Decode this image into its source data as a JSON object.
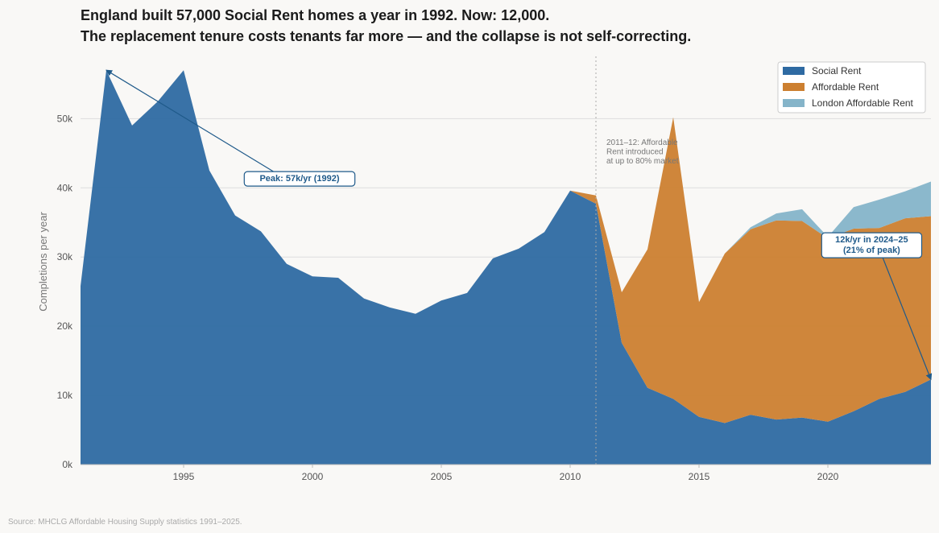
{
  "title_line1": "England built 57,000 Social Rent homes a year in 1992. Now: 12,000.",
  "title_line2": "The replacement tenure costs tenants far more — and the collapse is not self-correcting.",
  "source": "Source: MHCLG Affordable Housing Supply statistics 1991–2025.",
  "chart_data": {
    "type": "area",
    "stacked": true,
    "ylabel": "Completions per year",
    "xlim": [
      1991,
      2024
    ],
    "ylim": [
      0,
      59000
    ],
    "x_ticks": [
      1995,
      2000,
      2005,
      2010,
      2015,
      2020
    ],
    "y_ticks": [
      0,
      10000,
      20000,
      30000,
      40000,
      50000
    ],
    "y_tick_labels": [
      "0k",
      "10k",
      "20k",
      "30k",
      "40k",
      "50k"
    ],
    "grid": "horizontal",
    "legend_position": "top-right",
    "x": [
      1991,
      1992,
      1993,
      1994,
      1995,
      1996,
      1997,
      1998,
      1999,
      2000,
      2001,
      2002,
      2003,
      2004,
      2005,
      2006,
      2007,
      2008,
      2009,
      2010,
      2011,
      2012,
      2013,
      2014,
      2015,
      2016,
      2017,
      2018,
      2019,
      2020,
      2021,
      2022,
      2023,
      2024
    ],
    "series": [
      {
        "name": "Social Rent",
        "color": "#2e6aa2",
        "values": [
          25800,
          57000,
          49000,
          52500,
          57000,
          42500,
          36000,
          33700,
          29000,
          27200,
          27000,
          24000,
          22700,
          21800,
          23700,
          24800,
          29800,
          31200,
          33600,
          39600,
          37700,
          17600,
          11100,
          9500,
          6900,
          6000,
          7200,
          6500,
          6800,
          6200,
          7700,
          9500,
          10500,
          12300
        ]
      },
      {
        "name": "Affordable Rent",
        "color": "#cc7f30",
        "values": [
          0,
          0,
          0,
          0,
          0,
          0,
          0,
          0,
          0,
          0,
          0,
          0,
          0,
          0,
          0,
          0,
          0,
          0,
          0,
          0,
          1200,
          7300,
          20000,
          40700,
          16600,
          24500,
          26800,
          28800,
          28400,
          26500,
          26400,
          24700,
          25100,
          23600
        ]
      },
      {
        "name": "London Affordable Rent",
        "color": "#85b4c9",
        "values": [
          0,
          0,
          0,
          0,
          0,
          0,
          0,
          0,
          0,
          0,
          0,
          0,
          0,
          0,
          0,
          0,
          0,
          0,
          0,
          0,
          0,
          0,
          0,
          0,
          0,
          0,
          300,
          1000,
          1700,
          200,
          3100,
          4100,
          3900,
          5000
        ]
      }
    ],
    "annotations": [
      {
        "text": "Peak: 57k/yr (1992)",
        "x": 1992,
        "y": 57000,
        "label_x": 1999.5,
        "label_y": 41300
      },
      {
        "text_lines": [
          "12k/yr in 2024–25",
          "(21% of peak)"
        ],
        "x": 2024,
        "y": 12300,
        "label_x": 2021.7,
        "label_y": 31700
      },
      {
        "text_lines": [
          "2011–12: Affordable",
          "Rent introduced",
          "at up to 80% market"
        ],
        "x": 2011,
        "vline": true
      }
    ]
  }
}
